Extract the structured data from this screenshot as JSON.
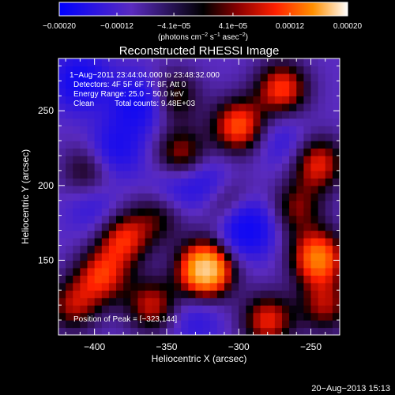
{
  "chart_data": {
    "type": "heatmap",
    "title": "Reconstructed RHESSI Image",
    "xlabel": "Heliocentric X (arcsec)",
    "ylabel": "Heliocentric Y (arcsec)",
    "xlim": [
      -425,
      -230
    ],
    "ylim": [
      100,
      285
    ],
    "x_ticks": [
      -400,
      -350,
      -300,
      -250
    ],
    "x_tick_labels": [
      "−400",
      "−350",
      "−300",
      "−250"
    ],
    "y_ticks": [
      150,
      200,
      250
    ],
    "y_tick_labels": [
      "150",
      "200",
      "250"
    ],
    "colorbar": {
      "min": -0.0002,
      "max": 0.0002,
      "ticks": [
        -0.0002,
        -0.00012,
        -4.1e-05,
        4.1e-05,
        0.00012,
        0.0002
      ],
      "tick_labels": [
        "−0.00020",
        "−0.00012",
        "−4.1e−05",
        "4.1e−05",
        "0.00012",
        "0.00020"
      ],
      "units_label": "(photons cm",
      "units_exp1": "−2",
      "units_mid": " s",
      "units_exp2": "−1",
      "units_end": " asec",
      "units_exp3": "−2",
      "units_close": ")"
    },
    "annotations": {
      "time_range": "1−Aug−2011 23:44:04.000 to 23:48:32.000",
      "detectors": "Detectors: 4F 5F 6F 7F 8F, Att 0",
      "energy_range": "Energy Range: 25.0 − 50.0 keV",
      "clean_label": "Clean",
      "total_counts": "Total counts: 9.48E+03",
      "peak_position": "Position of Peak = [−323,144]"
    },
    "peak": [
      -323,
      144
    ],
    "blobs": [
      {
        "x": -323,
        "y": 144,
        "v": 1.0
      },
      {
        "x": -245,
        "y": 152,
        "v": 0.7
      },
      {
        "x": -300,
        "y": 240,
        "v": 0.6
      },
      {
        "x": -340,
        "y": 220,
        "v": 0.45
      },
      {
        "x": -270,
        "y": 265,
        "v": 0.55
      },
      {
        "x": -380,
        "y": 165,
        "v": 0.5
      },
      {
        "x": -360,
        "y": 120,
        "v": 0.45
      },
      {
        "x": -395,
        "y": 140,
        "v": 0.5
      },
      {
        "x": -415,
        "y": 120,
        "v": 0.4
      },
      {
        "x": -280,
        "y": 110,
        "v": 0.5
      },
      {
        "x": -310,
        "y": 190,
        "v": 0.4
      },
      {
        "x": -245,
        "y": 215,
        "v": 0.5
      },
      {
        "x": -260,
        "y": 185,
        "v": 0.35
      },
      {
        "x": -405,
        "y": 210,
        "v": 0.3
      },
      {
        "x": -345,
        "y": 260,
        "v": 0.35
      },
      {
        "x": -355,
        "y": 180,
        "v": 0.3
      },
      {
        "x": -240,
        "y": 120,
        "v": 0.4
      },
      {
        "x": -410,
        "y": 270,
        "v": -0.45
      },
      {
        "x": -370,
        "y": 255,
        "v": -0.45
      },
      {
        "x": -320,
        "y": 200,
        "v": -0.35
      },
      {
        "x": -295,
        "y": 172,
        "v": -0.55
      },
      {
        "x": -385,
        "y": 225,
        "v": -0.35
      },
      {
        "x": -345,
        "y": 200,
        "v": -0.25
      },
      {
        "x": -400,
        "y": 185,
        "v": -0.2
      },
      {
        "x": -270,
        "y": 230,
        "v": -0.2
      },
      {
        "x": -330,
        "y": 110,
        "v": -0.2
      }
    ]
  },
  "footer": {
    "date_stamp": "20−Aug−2013 15:13"
  }
}
